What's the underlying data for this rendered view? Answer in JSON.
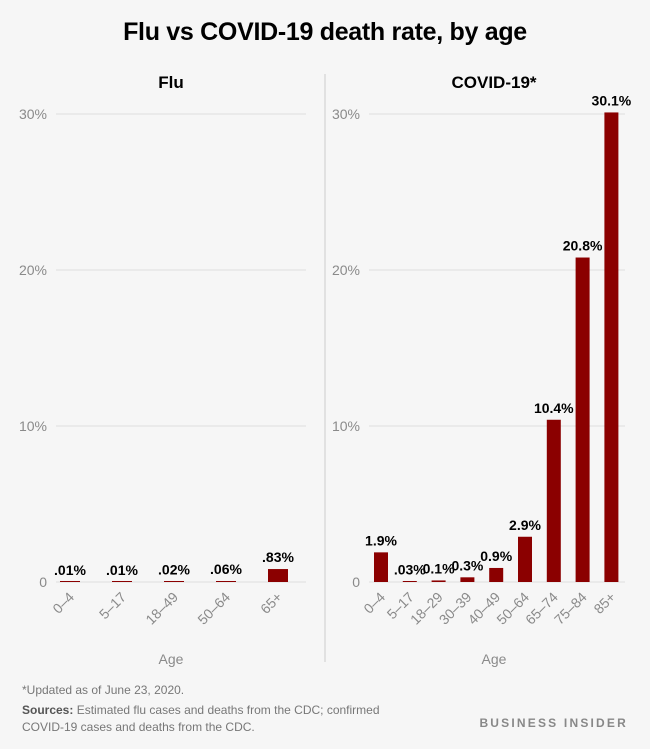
{
  "title": "Flu vs COVID-19 death rate, by age",
  "colors": {
    "bar": "#8b0000",
    "grid": "#dddddd",
    "divider": "#cccccc"
  },
  "chart_data": [
    {
      "type": "bar",
      "title": "Flu",
      "categories": [
        "0–4",
        "5–17",
        "18–49",
        "50–64",
        "65+"
      ],
      "values": [
        0.01,
        0.01,
        0.02,
        0.06,
        0.83
      ],
      "value_labels": [
        ".01%",
        ".01%",
        ".02%",
        ".06%",
        ".83%"
      ],
      "xlabel": "Age",
      "ylabel": "",
      "ylim": [
        0,
        30
      ],
      "yticks": [
        0,
        10,
        20,
        30
      ],
      "ytick_labels": [
        "0",
        "10%",
        "20%",
        "30%"
      ]
    },
    {
      "type": "bar",
      "title": "COVID-19*",
      "categories": [
        "0–4",
        "5–17",
        "18–29",
        "30–39",
        "40–49",
        "50–64",
        "65–74",
        "75–84",
        "85+"
      ],
      "values": [
        1.9,
        0.03,
        0.1,
        0.3,
        0.9,
        2.9,
        10.4,
        20.8,
        30.1
      ],
      "value_labels": [
        "1.9%",
        ".03%",
        "0.1%",
        "0.3%",
        "0.9%",
        "2.9%",
        "10.4%",
        "20.8%",
        "30.1%"
      ],
      "xlabel": "Age",
      "ylabel": "",
      "ylim": [
        0,
        30
      ],
      "yticks": [
        0,
        10,
        20,
        30
      ],
      "ytick_labels": [
        "0",
        "10%",
        "20%",
        "30%"
      ]
    }
  ],
  "footnote": "*Updated as of June 23, 2020.",
  "sources_label": "Sources:",
  "sources_text": "Estimated flu cases and deaths from the CDC; confirmed COVID-19 cases and deaths from the CDC.",
  "brand": "BUSINESS INSIDER"
}
